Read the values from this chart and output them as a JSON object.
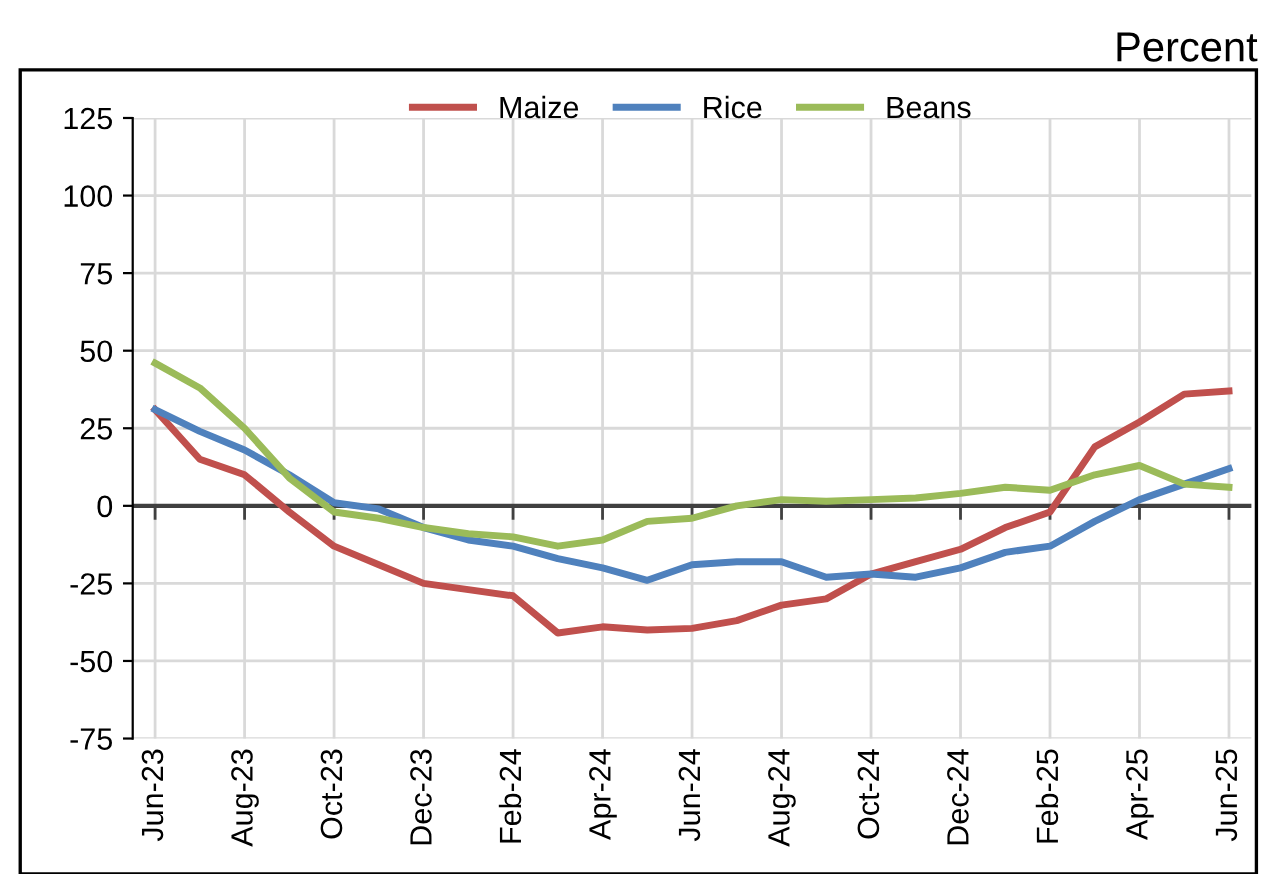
{
  "chart_data": {
    "type": "line",
    "ylabel": "Percent",
    "categories": [
      "Jun-23",
      null,
      "Aug-23",
      null,
      "Oct-23",
      null,
      "Dec-23",
      null,
      "Feb-24",
      null,
      "Apr-24",
      null,
      "Jun-24",
      null,
      "Aug-24",
      null,
      "Oct-24",
      null,
      "Dec-24",
      null,
      "Feb-25",
      null,
      "Apr-25",
      null,
      "Jun-25"
    ],
    "series": [
      {
        "name": "Maize",
        "color": "#c0504d",
        "values": [
          31,
          15,
          10,
          -2,
          -13,
          -19,
          -25,
          -27,
          -29,
          -41,
          -39,
          -40,
          -39.5,
          -37,
          -32,
          -30,
          -22,
          -18,
          -14,
          -7,
          -2,
          19,
          27,
          36,
          37
        ]
      },
      {
        "name": "Rice",
        "color": "#4f81bd",
        "values": [
          31,
          24,
          18,
          10,
          1,
          -1,
          -7,
          -11,
          -13,
          -17,
          -20,
          -24,
          -19,
          -18,
          -18,
          -23,
          -22,
          -23,
          -20,
          -15,
          -13,
          -5,
          2,
          7,
          12
        ]
      },
      {
        "name": "Beans",
        "color": "#9bbb59",
        "values": [
          46,
          38,
          25,
          9,
          -2,
          -4,
          -7,
          -9,
          -10,
          -13,
          -11,
          -5,
          -4,
          0,
          2,
          1.5,
          2,
          2.5,
          4,
          6,
          5,
          10,
          13,
          7,
          6
        ]
      }
    ],
    "ylim": [
      -75,
      125
    ],
    "yticks": [
      -75,
      -50,
      -25,
      0,
      25,
      50,
      75,
      100,
      125
    ],
    "grid": true,
    "legend": "top",
    "marker": "none",
    "line_style": "solid"
  }
}
